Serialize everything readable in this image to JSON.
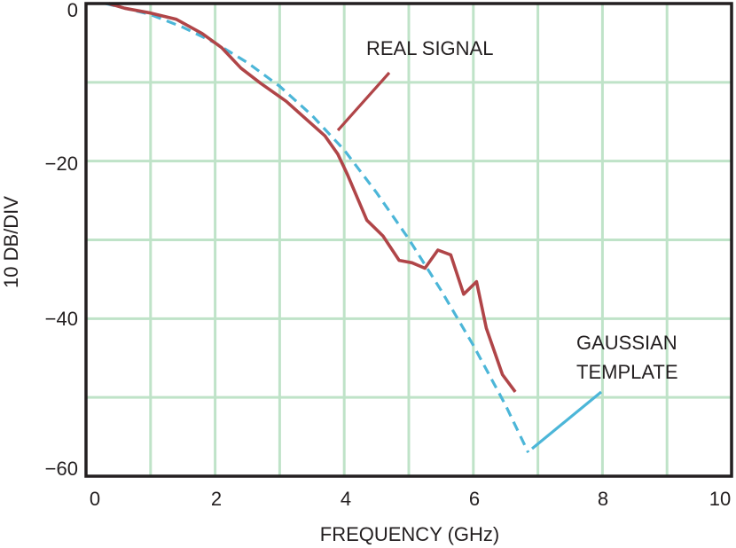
{
  "chart_data": {
    "type": "line",
    "title": "",
    "xlabel": "FREQUENCY (GHz)",
    "ylabel": "10 DB/DIV",
    "xlim": [
      0,
      10
    ],
    "ylim": [
      -60,
      0
    ],
    "x_ticks": [
      "0",
      "2",
      "4",
      "6",
      "8",
      "10"
    ],
    "y_ticks": [
      "0",
      "−20",
      "−40",
      "−60"
    ],
    "grid": true,
    "series": [
      {
        "name": "REAL SIGNAL",
        "style": "solid",
        "color": "#b04548",
        "x": [
          0.35,
          0.6,
          1.0,
          1.4,
          1.8,
          2.1,
          2.4,
          2.7,
          3.1,
          3.4,
          3.7,
          3.9,
          4.05,
          4.35,
          4.6,
          4.85,
          5.05,
          5.25,
          5.45,
          5.65,
          5.85,
          6.05,
          6.2,
          6.45,
          6.65
        ],
        "y": [
          0.0,
          -0.6,
          -1.2,
          -2.0,
          -3.8,
          -5.6,
          -8.2,
          -10.1,
          -12.4,
          -14.6,
          -16.8,
          -19.1,
          -21.7,
          -27.5,
          -29.5,
          -32.6,
          -32.9,
          -33.6,
          -31.3,
          -31.9,
          -36.9,
          -35.3,
          -41.2,
          -47.1,
          -49.3
        ]
      },
      {
        "name": "GAUSSIAN TEMPLATE",
        "style": "dashed",
        "color": "#4cb6d8",
        "x": [
          0.3,
          1.0,
          1.5,
          2.0,
          2.5,
          3.0,
          3.5,
          4.0,
          4.5,
          5.0,
          5.5,
          6.0,
          6.5,
          6.85
        ],
        "y": [
          0.0,
          -1.4,
          -3.0,
          -5.0,
          -7.5,
          -10.5,
          -14.2,
          -18.6,
          -24.0,
          -29.9,
          -36.4,
          -43.4,
          -51.0,
          -57.0
        ]
      }
    ],
    "annotations": [
      {
        "text": "REAL SIGNAL",
        "series": 0
      },
      {
        "text": "GAUSSIAN",
        "series": 1
      },
      {
        "text": "TEMPLATE",
        "series": 1
      }
    ],
    "colors": {
      "grid": "#bfe3c8",
      "frame": "#231f20",
      "real_signal": "#b04548",
      "gaussian_template": "#4cb6d8"
    }
  }
}
